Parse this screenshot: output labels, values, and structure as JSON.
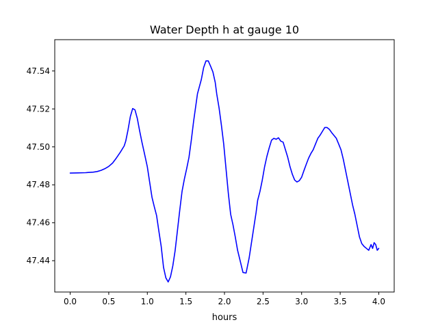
{
  "chart_data": {
    "type": "line",
    "title": "Water Depth h at gauge 10",
    "xlabel": "hours",
    "ylabel": "",
    "xlim": [
      -0.2,
      4.2
    ],
    "ylim": [
      47.4235,
      47.5565
    ],
    "x_ticks": [
      0.0,
      0.5,
      1.0,
      1.5,
      2.0,
      2.5,
      3.0,
      3.5,
      4.0
    ],
    "x_tick_labels": [
      "0.0",
      "0.5",
      "1.0",
      "1.5",
      "2.0",
      "2.5",
      "3.0",
      "3.5",
      "4.0"
    ],
    "y_ticks": [
      47.44,
      47.46,
      47.48,
      47.5,
      47.52,
      47.54
    ],
    "y_tick_labels": [
      "47.44",
      "47.46",
      "47.48",
      "47.50",
      "47.52",
      "47.54"
    ],
    "grid": false,
    "series": [
      {
        "color": "#0000ff",
        "x": [
          0.0,
          0.1,
          0.2,
          0.3,
          0.35,
          0.4,
          0.45,
          0.5,
          0.55,
          0.6,
          0.65,
          0.7,
          0.72,
          0.75,
          0.78,
          0.81,
          0.84,
          0.87,
          0.9,
          0.93,
          0.96,
          1.0,
          1.03,
          1.06,
          1.09,
          1.12,
          1.15,
          1.18,
          1.21,
          1.24,
          1.27,
          1.3,
          1.33,
          1.36,
          1.39,
          1.42,
          1.45,
          1.48,
          1.51,
          1.54,
          1.57,
          1.6,
          1.65,
          1.7,
          1.73,
          1.76,
          1.79,
          1.82,
          1.85,
          1.88,
          1.9,
          1.93,
          1.96,
          1.99,
          2.02,
          2.05,
          2.08,
          2.11,
          2.14,
          2.17,
          2.2,
          2.24,
          2.28,
          2.32,
          2.35,
          2.38,
          2.41,
          2.43,
          2.46,
          2.49,
          2.52,
          2.55,
          2.58,
          2.61,
          2.64,
          2.67,
          2.7,
          2.73,
          2.76,
          2.79,
          2.82,
          2.85,
          2.88,
          2.91,
          2.94,
          2.97,
          3.0,
          3.03,
          3.06,
          3.09,
          3.12,
          3.15,
          3.18,
          3.21,
          3.24,
          3.27,
          3.3,
          3.33,
          3.36,
          3.39,
          3.42,
          3.45,
          3.48,
          3.51,
          3.54,
          3.57,
          3.6,
          3.63,
          3.66,
          3.69,
          3.72,
          3.75,
          3.78,
          3.81,
          3.84,
          3.87,
          3.9,
          3.92,
          3.94,
          3.96,
          3.98,
          4.0
        ],
        "y": [
          47.4862,
          47.4863,
          47.4864,
          47.4867,
          47.487,
          47.4876,
          47.4885,
          47.4897,
          47.4915,
          47.4942,
          47.4972,
          47.5005,
          47.503,
          47.509,
          47.516,
          47.5202,
          47.5195,
          47.515,
          47.5085,
          47.5025,
          47.497,
          47.4895,
          47.4815,
          47.4735,
          47.4685,
          47.4638,
          47.4555,
          47.4475,
          47.4365,
          47.431,
          47.4288,
          47.4315,
          47.4372,
          47.4452,
          47.4558,
          47.4665,
          47.4765,
          47.483,
          47.4885,
          47.4945,
          47.5035,
          47.5135,
          47.528,
          47.5355,
          47.5418,
          47.5453,
          47.5453,
          47.5425,
          47.5395,
          47.534,
          47.5278,
          47.5205,
          47.5115,
          47.5015,
          47.4885,
          47.4755,
          47.4645,
          47.459,
          47.4525,
          47.4455,
          47.4405,
          47.4338,
          47.4335,
          47.4415,
          47.4495,
          47.4575,
          47.4655,
          47.4718,
          47.4765,
          47.4825,
          47.4895,
          47.495,
          47.4995,
          47.5035,
          47.5045,
          47.504,
          47.5048,
          47.503,
          47.5025,
          47.4985,
          47.4945,
          47.4895,
          47.4855,
          47.4825,
          47.4815,
          47.4822,
          47.484,
          47.4875,
          47.4908,
          47.494,
          47.4965,
          47.4985,
          47.5015,
          47.5045,
          47.5062,
          47.5082,
          47.5102,
          47.5102,
          47.5092,
          47.5075,
          47.506,
          47.5045,
          47.5015,
          47.4985,
          47.4935,
          47.4875,
          47.4815,
          47.4755,
          47.4695,
          47.4645,
          47.4585,
          47.4525,
          47.449,
          47.4475,
          47.4465,
          47.4455,
          47.4485,
          47.4465,
          47.4495,
          47.4485,
          47.4455,
          47.4465
        ]
      }
    ]
  }
}
